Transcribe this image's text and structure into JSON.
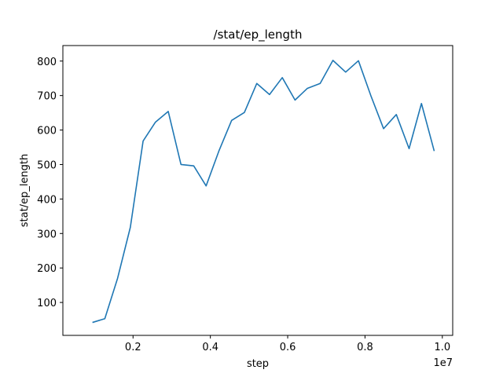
{
  "chart_data": {
    "type": "line",
    "title": "/stat/ep_length",
    "xlabel": "step",
    "ylabel": "stat/ep_length",
    "x_offset_label": "1e7",
    "xlim": [
      0.0,
      1.0
    ],
    "ylim": [
      0,
      850
    ],
    "grid": false,
    "xticks": [
      0.2,
      0.4,
      0.6,
      0.8,
      1.0
    ],
    "xtick_labels": [
      "0.2",
      "0.4",
      "0.6",
      "0.8",
      "1.0"
    ],
    "yticks": [
      100,
      200,
      300,
      400,
      500,
      600,
      700,
      800
    ],
    "ytick_labels": [
      "100",
      "200",
      "300",
      "400",
      "500",
      "600",
      "700",
      "800"
    ],
    "series": [
      {
        "color": "#1f77b4",
        "x": [
          0.095,
          0.127,
          0.16,
          0.193,
          0.226,
          0.258,
          0.291,
          0.324,
          0.357,
          0.389,
          0.422,
          0.455,
          0.488,
          0.52,
          0.553,
          0.586,
          0.619,
          0.651,
          0.684,
          0.717,
          0.75,
          0.783,
          0.815,
          0.848,
          0.881,
          0.914,
          0.946,
          0.979
        ],
        "y": [
          42,
          53,
          170,
          318,
          568,
          623,
          654,
          500,
          496,
          438,
          539,
          628,
          651,
          735,
          703,
          752,
          687,
          721,
          735,
          802,
          768,
          801,
          700,
          604,
          645,
          546,
          677,
          539
        ]
      }
    ]
  }
}
